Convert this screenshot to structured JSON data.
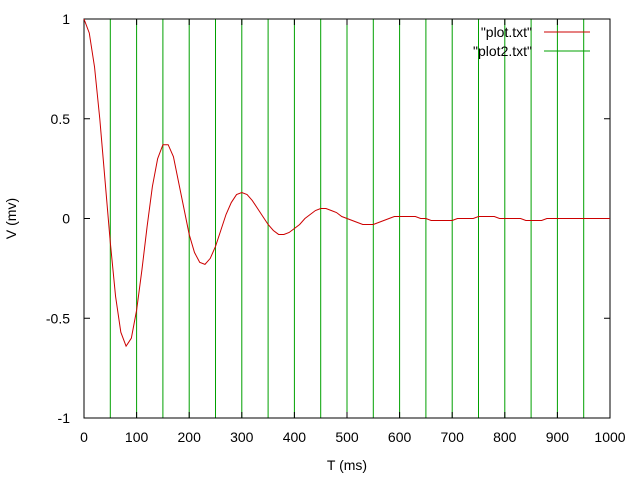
{
  "chart_data": {
    "type": "line",
    "title": "",
    "xlabel": "T (ms)",
    "ylabel": "V (mv)",
    "xlim": [
      0,
      1000
    ],
    "ylim": [
      -1,
      1
    ],
    "x_ticks": [
      0,
      100,
      200,
      300,
      400,
      500,
      600,
      700,
      800,
      900,
      1000
    ],
    "y_ticks": [
      -1,
      -0.5,
      0,
      0.5,
      1
    ],
    "grid": false,
    "legend_position": "top-right",
    "series": [
      {
        "name": "\"plot.txt\"",
        "color": "#cc0000",
        "style": "line",
        "x": [
          0,
          10,
          20,
          30,
          40,
          50,
          60,
          70,
          80,
          90,
          100,
          110,
          120,
          130,
          140,
          150,
          160,
          170,
          180,
          190,
          200,
          210,
          220,
          230,
          240,
          250,
          260,
          270,
          280,
          290,
          300,
          310,
          320,
          330,
          340,
          350,
          360,
          370,
          380,
          390,
          400,
          410,
          420,
          430,
          440,
          450,
          460,
          470,
          480,
          490,
          500,
          510,
          520,
          530,
          540,
          550,
          560,
          570,
          580,
          590,
          600,
          610,
          620,
          630,
          640,
          650,
          660,
          670,
          680,
          690,
          700,
          710,
          720,
          730,
          740,
          750,
          760,
          770,
          780,
          790,
          800,
          810,
          820,
          830,
          840,
          850,
          860,
          870,
          880,
          890,
          900,
          910,
          920,
          930,
          940,
          950,
          960,
          970,
          980,
          990,
          1000
        ],
        "y": [
          1,
          0.93,
          0.76,
          0.5,
          0.19,
          -0.12,
          -0.39,
          -0.57,
          -0.64,
          -0.6,
          -0.46,
          -0.26,
          -0.04,
          0.16,
          0.3,
          0.37,
          0.37,
          0.31,
          0.18,
          0.05,
          -0.08,
          -0.17,
          -0.22,
          -0.23,
          -0.2,
          -0.14,
          -0.06,
          0.02,
          0.08,
          0.12,
          0.13,
          0.12,
          0.09,
          0.05,
          0.01,
          -0.03,
          -0.06,
          -0.08,
          -0.08,
          -0.07,
          -0.05,
          -0.03,
          0,
          0.02,
          0.04,
          0.05,
          0.05,
          0.04,
          0.03,
          0.01,
          0,
          -0.01,
          -0.02,
          -0.03,
          -0.03,
          -0.03,
          -0.02,
          -0.01,
          0,
          0.01,
          0.01,
          0.01,
          0.01,
          0.01,
          0,
          0,
          -0.01,
          -0.01,
          -0.01,
          -0.01,
          -0.01,
          0,
          0,
          0,
          0,
          0.01,
          0.01,
          0.01,
          0.01,
          0,
          0,
          0,
          0,
          0,
          -0.01,
          -0.01,
          -0.01,
          -0.01,
          0,
          0,
          0,
          0,
          0,
          0,
          0,
          0,
          0,
          0,
          0,
          0,
          0
        ]
      },
      {
        "name": "\"plot2.txt\"",
        "color": "#00a000",
        "style": "impulses",
        "x": [
          50,
          100,
          150,
          200,
          250,
          300,
          350,
          400,
          450,
          500,
          550,
          600,
          650,
          700,
          750,
          800,
          850,
          900,
          950
        ],
        "y": [
          1,
          1,
          1,
          1,
          1,
          1,
          1,
          1,
          1,
          1,
          1,
          1,
          1,
          1,
          1,
          1,
          1,
          1,
          1
        ]
      }
    ]
  }
}
